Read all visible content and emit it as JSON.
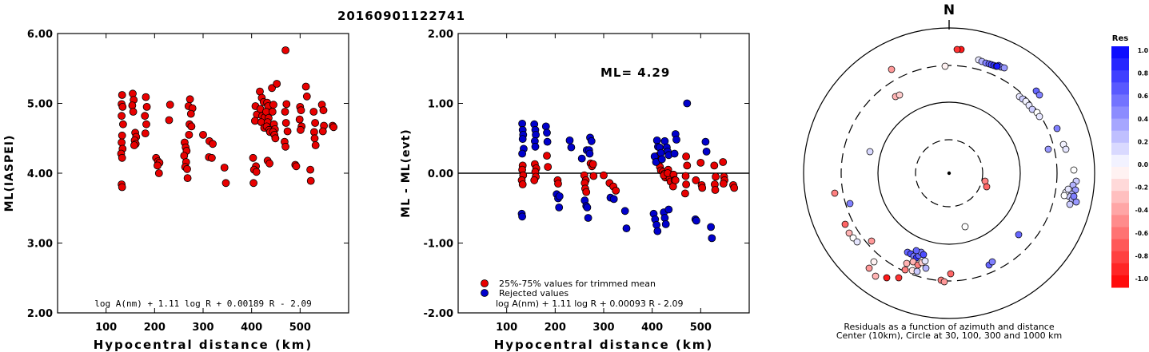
{
  "title": "20160901122741",
  "chart_data": [
    {
      "type": "scatter",
      "name": "ml-vs-distance",
      "ylabel": "ML(IASPEI)",
      "xlabel": "Hypocentral distance (km)",
      "xlim": [
        0,
        600
      ],
      "ylim": [
        2.0,
        6.0
      ],
      "xticks": [
        100,
        200,
        300,
        400,
        500
      ],
      "yticks": [
        2.0,
        3.0,
        4.0,
        5.0,
        6.0
      ],
      "ytick_labels": [
        "2.00",
        "3.00",
        "4.00",
        "5.00",
        "6.00"
      ],
      "formula": "log A(nm) + 1.11 log R + 0.00189 R - 2.09",
      "points": [
        [
          133,
          5.12
        ],
        [
          132,
          4.99
        ],
        [
          134,
          4.95
        ],
        [
          132,
          4.82
        ],
        [
          135,
          4.7
        ],
        [
          133,
          4.54
        ],
        [
          132,
          4.44
        ],
        [
          134,
          4.35
        ],
        [
          131,
          4.28
        ],
        [
          133,
          4.22
        ],
        [
          132,
          3.84
        ],
        [
          133,
          3.8
        ],
        [
          155,
          5.14
        ],
        [
          157,
          5.05
        ],
        [
          154,
          4.97
        ],
        [
          156,
          4.88
        ],
        [
          160,
          4.58
        ],
        [
          162,
          4.52
        ],
        [
          159,
          4.47
        ],
        [
          161,
          4.42
        ],
        [
          158,
          4.4
        ],
        [
          182,
          5.09
        ],
        [
          184,
          4.95
        ],
        [
          180,
          4.82
        ],
        [
          183,
          4.7
        ],
        [
          181,
          4.57
        ],
        [
          203,
          4.22
        ],
        [
          207,
          4.17
        ],
        [
          210,
          4.15
        ],
        [
          206,
          4.11
        ],
        [
          209,
          4.0
        ],
        [
          232,
          4.98
        ],
        [
          230,
          4.76
        ],
        [
          262,
          4.44
        ],
        [
          264,
          4.37
        ],
        [
          266,
          4.32
        ],
        [
          261,
          4.25
        ],
        [
          265,
          4.16
        ],
        [
          263,
          4.09
        ],
        [
          267,
          4.06
        ],
        [
          268,
          3.93
        ],
        [
          273,
          5.06
        ],
        [
          270,
          4.96
        ],
        [
          278,
          4.93
        ],
        [
          275,
          4.85
        ],
        [
          272,
          4.7
        ],
        [
          276,
          4.67
        ],
        [
          271,
          4.55
        ],
        [
          300,
          4.55
        ],
        [
          313,
          4.46
        ],
        [
          320,
          4.42
        ],
        [
          312,
          4.23
        ],
        [
          318,
          4.22
        ],
        [
          344,
          4.08
        ],
        [
          347,
          3.86
        ],
        [
          408,
          4.96
        ],
        [
          411,
          4.84
        ],
        [
          407,
          4.75
        ],
        [
          403,
          4.22
        ],
        [
          409,
          4.1
        ],
        [
          405,
          4.05
        ],
        [
          410,
          4.02
        ],
        [
          404,
          3.86
        ],
        [
          417,
          5.17
        ],
        [
          421,
          5.08
        ],
        [
          425,
          5.02
        ],
        [
          418,
          4.92
        ],
        [
          422,
          4.82
        ],
        [
          427,
          4.8
        ],
        [
          420,
          4.73
        ],
        [
          426,
          4.65
        ],
        [
          432,
          5.01
        ],
        [
          434,
          4.96
        ],
        [
          430,
          4.88
        ],
        [
          435,
          4.79
        ],
        [
          433,
          4.73
        ],
        [
          431,
          4.67
        ],
        [
          436,
          4.62
        ],
        [
          438,
          4.59
        ],
        [
          433,
          4.18
        ],
        [
          437,
          4.14
        ],
        [
          442,
          5.22
        ],
        [
          445,
          4.98
        ],
        [
          443,
          4.88
        ],
        [
          446,
          4.7
        ],
        [
          448,
          4.63
        ],
        [
          444,
          4.59
        ],
        [
          447,
          4.55
        ],
        [
          452,
          5.28
        ],
        [
          449,
          4.5
        ],
        [
          470,
          5.76
        ],
        [
          472,
          4.99
        ],
        [
          469,
          4.88
        ],
        [
          471,
          4.72
        ],
        [
          474,
          4.6
        ],
        [
          468,
          4.45
        ],
        [
          470,
          4.38
        ],
        [
          490,
          4.12
        ],
        [
          492,
          4.1
        ],
        [
          500,
          4.95
        ],
        [
          502,
          4.9
        ],
        [
          499,
          4.77
        ],
        [
          503,
          4.67
        ],
        [
          501,
          4.62
        ],
        [
          512,
          5.24
        ],
        [
          514,
          5.1
        ],
        [
          521,
          4.05
        ],
        [
          522,
          3.89
        ],
        [
          528,
          4.88
        ],
        [
          531,
          4.72
        ],
        [
          529,
          4.59
        ],
        [
          530,
          4.5
        ],
        [
          532,
          4.4
        ],
        [
          545,
          4.98
        ],
        [
          548,
          4.9
        ],
        [
          549,
          4.68
        ],
        [
          547,
          4.6
        ],
        [
          567,
          4.68
        ],
        [
          569,
          4.66
        ]
      ]
    },
    {
      "type": "scatter",
      "name": "residual-vs-distance",
      "ylabel": "ML - ML(evt)",
      "xlabel": "Hypocentral distance (km)",
      "xlim": [
        0,
        600
      ],
      "ylim": [
        -2.0,
        2.0
      ],
      "xticks": [
        100,
        200,
        300,
        400,
        500
      ],
      "yticks": [
        -2.0,
        -1.0,
        0.0,
        1.0,
        2.0
      ],
      "ytick_labels": [
        "-2.00",
        "-1.00",
        "0.00",
        "1.00",
        "2.00"
      ],
      "annotation": "ML=  4.29",
      "formula": "log A(nm) + 1.11 log R + 0.00093 R - 2.09",
      "legend": [
        {
          "label": "25%-75% values for trimmed mean",
          "color": "#e80000"
        },
        {
          "label": "Rejected values",
          "color": "#0000cc"
        }
      ],
      "series": [
        {
          "name": "25%-75% values for trimmed mean",
          "color": "#e80000",
          "points": [
            [
              133,
              0.11
            ],
            [
              132,
              0.05
            ],
            [
              134,
              -0.03
            ],
            [
              131,
              -0.1
            ],
            [
              133,
              -0.16
            ],
            [
              158,
              0.13
            ],
            [
              161,
              0.07
            ],
            [
              159,
              0.02
            ],
            [
              160,
              -0.05
            ],
            [
              157,
              -0.1
            ],
            [
              183,
              0.25
            ],
            [
              185,
              0.09
            ],
            [
              205,
              -0.1
            ],
            [
              206,
              -0.15
            ],
            [
              260,
              -0.03
            ],
            [
              263,
              -0.1
            ],
            [
              261,
              -0.14
            ],
            [
              262,
              -0.22
            ],
            [
              264,
              -0.27
            ],
            [
              273,
              0.14
            ],
            [
              276,
              0.1
            ],
            [
              278,
              0.13
            ],
            [
              279,
              -0.04
            ],
            [
              300,
              -0.03
            ],
            [
              312,
              -0.14
            ],
            [
              320,
              -0.19
            ],
            [
              325,
              -0.25
            ],
            [
              412,
              0.25
            ],
            [
              414,
              0.17
            ],
            [
              416,
              0.09
            ],
            [
              418,
              0.04
            ],
            [
              422,
              0.02
            ],
            [
              425,
              -0.01
            ],
            [
              427,
              -0.06
            ],
            [
              424,
              -0.03
            ],
            [
              433,
              0.05
            ],
            [
              436,
              -0.08
            ],
            [
              438,
              -0.12
            ],
            [
              432,
              0.0
            ],
            [
              444,
              -0.02
            ],
            [
              446,
              -0.1
            ],
            [
              443,
              -0.19
            ],
            [
              448,
              -0.1
            ],
            [
              470,
              0.24
            ],
            [
              472,
              0.11
            ],
            [
              469,
              -0.04
            ],
            [
              470,
              -0.16
            ],
            [
              468,
              -0.29
            ],
            [
              490,
              -0.1
            ],
            [
              500,
              0.15
            ],
            [
              502,
              -0.17
            ],
            [
              503,
              -0.21
            ],
            [
              528,
              0.11
            ],
            [
              531,
              -0.05
            ],
            [
              529,
              -0.16
            ],
            [
              530,
              -0.24
            ],
            [
              546,
              0.16
            ],
            [
              548,
              -0.05
            ],
            [
              549,
              -0.1
            ],
            [
              547,
              -0.15
            ],
            [
              567,
              -0.17
            ],
            [
              569,
              -0.21
            ]
          ]
        },
        {
          "name": "Rejected values",
          "color": "#0000cc",
          "points": [
            [
              132,
              0.71
            ],
            [
              133,
              0.62
            ],
            [
              134,
              0.55
            ],
            [
              133,
              0.49
            ],
            [
              135,
              0.35
            ],
            [
              132,
              0.28
            ],
            [
              131,
              -0.58
            ],
            [
              132,
              -0.62
            ],
            [
              157,
              0.7
            ],
            [
              159,
              0.62
            ],
            [
              160,
              0.55
            ],
            [
              158,
              0.46
            ],
            [
              159,
              0.38
            ],
            [
              181,
              0.67
            ],
            [
              183,
              0.58
            ],
            [
              184,
              0.45
            ],
            [
              203,
              -0.3
            ],
            [
              206,
              -0.36
            ],
            [
              209,
              -0.33
            ],
            [
              208,
              -0.49
            ],
            [
              230,
              0.47
            ],
            [
              233,
              0.37
            ],
            [
              255,
              0.21
            ],
            [
              265,
              0.33
            ],
            [
              270,
              0.33
            ],
            [
              272,
              0.51
            ],
            [
              275,
              0.46
            ],
            [
              271,
              0.28
            ],
            [
              261,
              -0.39
            ],
            [
              264,
              -0.47
            ],
            [
              266,
              -0.49
            ],
            [
              268,
              -0.64
            ],
            [
              314,
              -0.35
            ],
            [
              321,
              -0.37
            ],
            [
              344,
              -0.54
            ],
            [
              347,
              -0.79
            ],
            [
              405,
              0.24
            ],
            [
              408,
              0.16
            ],
            [
              410,
              0.47
            ],
            [
              412,
              0.38
            ],
            [
              415,
              0.37
            ],
            [
              418,
              0.29
            ],
            [
              420,
              0.2
            ],
            [
              426,
              0.46
            ],
            [
              430,
              0.37
            ],
            [
              432,
              0.31
            ],
            [
              434,
              0.26
            ],
            [
              448,
              0.56
            ],
            [
              450,
              0.48
            ],
            [
              446,
              0.28
            ],
            [
              403,
              -0.58
            ],
            [
              406,
              -0.66
            ],
            [
              409,
              -0.74
            ],
            [
              411,
              -0.83
            ],
            [
              424,
              -0.56
            ],
            [
              426,
              -0.64
            ],
            [
              428,
              -0.73
            ],
            [
              434,
              -0.52
            ],
            [
              472,
              1.0
            ],
            [
              489,
              -0.66
            ],
            [
              491,
              -0.68
            ],
            [
              510,
              0.45
            ],
            [
              512,
              0.31
            ],
            [
              521,
              -0.77
            ],
            [
              523,
              -0.93
            ]
          ]
        }
      ]
    },
    {
      "type": "scatter",
      "name": "azimuth-distance-residuals",
      "north_label": "N",
      "xlabel": "Residuals as a function of azimuth and distance",
      "subtitle": "Center (10km), Circle at 30, 100, 300 and 1000 km",
      "colorbar": {
        "title": "Res",
        "min": -1.0,
        "max": 1.0,
        "tick_labels": [
          "1.0",
          "0.8",
          "0.6",
          "0.4",
          "0.2",
          "0.0",
          "-0.2",
          "-0.4",
          "-0.6",
          "-0.8",
          "-1.0"
        ]
      }
    }
  ]
}
